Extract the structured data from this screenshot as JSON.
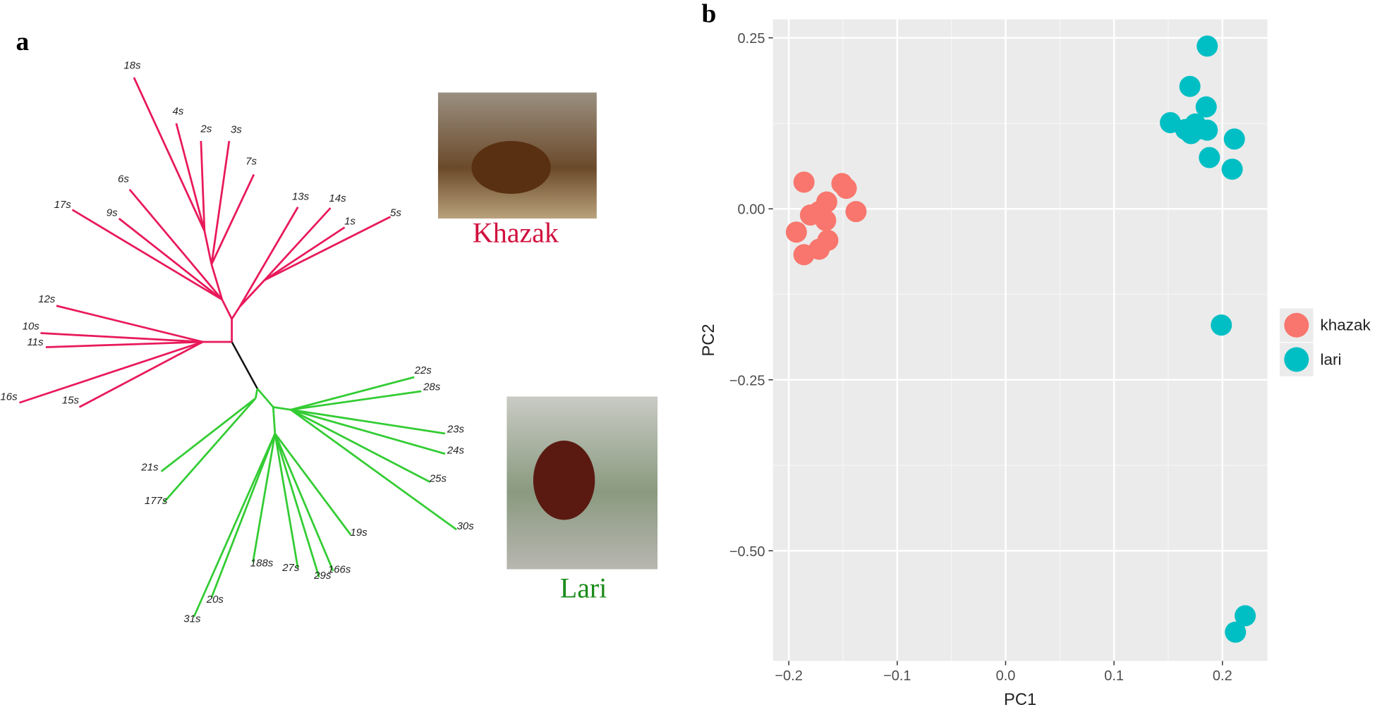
{
  "chart_data": [
    {
      "type": "tree",
      "panel_label": "a",
      "groups": [
        {
          "name": "Khazak",
          "color": "#e8195a",
          "label_color": "#d0103e",
          "leaves": [
            "18s",
            "4s",
            "2s",
            "3s",
            "7s",
            "6s",
            "17s",
            "9s",
            "13s",
            "14s",
            "1s",
            "5s",
            "12s",
            "10s",
            "11s",
            "16s",
            "15s"
          ]
        },
        {
          "name": "Lari",
          "color": "#33cc33",
          "label_color": "#1a8c1a",
          "leaves": [
            "22s",
            "28s",
            "23s",
            "24s",
            "25s",
            "30s",
            "21s",
            "177s",
            "188s",
            "27s",
            "29s",
            "166s",
            "19s",
            "20s",
            "31s"
          ]
        }
      ]
    },
    {
      "type": "scatter",
      "panel_label": "b",
      "x_label": "PC1",
      "y_label": "PC2",
      "xlim": [
        -0.2146,
        0.2415
      ],
      "ylim": [
        -0.661,
        0.277
      ],
      "xticks": [
        {
          "value": -0.2,
          "label": "−0.2"
        },
        {
          "value": -0.1,
          "label": "−0.1"
        },
        {
          "value": 0,
          "label": "0.0"
        },
        0.1,
        0.2
      ],
      "yticks": [
        0.25,
        {
          "value": 0,
          "label": "0.00"
        },
        {
          "value": -0.25,
          "label": "−0.25"
        },
        {
          "value": -0.5,
          "label": "−0.50"
        }
      ],
      "grid": true,
      "series": [
        {
          "name": "khazak",
          "color": "#f8766d",
          "x": [
            -0.186,
            -0.151,
            -0.147,
            -0.165,
            -0.138,
            -0.18,
            -0.172,
            -0.166,
            -0.193,
            -0.164,
            -0.172,
            -0.186
          ],
          "values": [
            0.039,
            0.037,
            0.03,
            0.01,
            -0.004,
            -0.009,
            -0.004,
            -0.017,
            -0.034,
            -0.046,
            -0.059,
            -0.067
          ]
        },
        {
          "name": "lari",
          "color": "#00bfc4",
          "x": [
            0.186,
            0.17,
            0.185,
            0.152,
            0.166,
            0.175,
            0.171,
            0.179,
            0.186,
            0.211,
            0.188,
            0.209,
            0.199,
            0.221,
            0.212
          ],
          "values": [
            0.238,
            0.179,
            0.149,
            0.126,
            0.116,
            0.124,
            0.11,
            0.117,
            0.115,
            0.102,
            0.075,
            0.058,
            -0.17,
            -0.595,
            -0.619
          ]
        }
      ]
    }
  ]
}
